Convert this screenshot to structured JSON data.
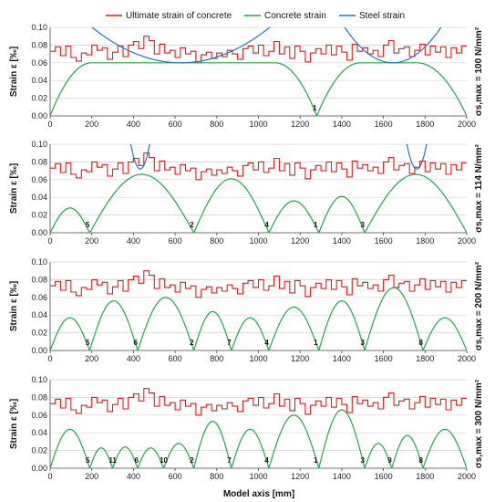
{
  "chart_data": {
    "type": "line",
    "legend": [
      {
        "name": "Ultimate strain of concrete",
        "color": "#e31a1c"
      },
      {
        "name": "Concrete strain",
        "color": "#22a845"
      },
      {
        "name": "Steel strain",
        "color": "#1f78c8"
      }
    ],
    "legend_position": "top",
    "xlabel": "Model axis [mm]",
    "ylabel": "Strain ε [‰]",
    "xlim": [
      0,
      2000
    ],
    "ylim": [
      0,
      0.1
    ],
    "x_ticks": [
      "0",
      "200",
      "400",
      "600",
      "800",
      "1000",
      "1200",
      "1400",
      "1600",
      "1800",
      "2000"
    ],
    "y_ticks": [
      "0.00",
      "0.02",
      "0.04",
      "0.06",
      "0.08",
      "0.10"
    ],
    "grid": "horizontal",
    "ultimate_strain": {
      "step": 25,
      "values": [
        0.073,
        0.078,
        0.068,
        0.079,
        0.066,
        0.062,
        0.071,
        0.069,
        0.08,
        0.074,
        0.077,
        0.064,
        0.072,
        0.079,
        0.067,
        0.08,
        0.084,
        0.076,
        0.09,
        0.085,
        0.07,
        0.081,
        0.071,
        0.074,
        0.066,
        0.077,
        0.07,
        0.073,
        0.06,
        0.069,
        0.072,
        0.065,
        0.071,
        0.067,
        0.074,
        0.07,
        0.064,
        0.076,
        0.079,
        0.071,
        0.08,
        0.068,
        0.073,
        0.084,
        0.07,
        0.078,
        0.065,
        0.079,
        0.073,
        0.061,
        0.071,
        0.076,
        0.07,
        0.08,
        0.069,
        0.079,
        0.072,
        0.063,
        0.081,
        0.073,
        0.077,
        0.07,
        0.074,
        0.067,
        0.08,
        0.085,
        0.071,
        0.076,
        0.078,
        0.067,
        0.074,
        0.081,
        0.069,
        0.079,
        0.072,
        0.078,
        0.066,
        0.077,
        0.071,
        0.079
      ]
    },
    "panels": [
      {
        "side_label": "σs,max = 100 N/mm²",
        "concrete_strain": [
          {
            "x": [
              0,
              200
            ],
            "peak": 0.06,
            "rise": "ramp"
          },
          {
            "x": [
              200,
              1080
            ],
            "peak": 0.06,
            "rise": "plateau"
          },
          {
            "x": [
              1080,
              1280
            ],
            "peak": 0.06,
            "rise": "ramp_down"
          },
          {
            "x": [
              1280,
              1490
            ],
            "peak": 0.06,
            "rise": "ramp"
          },
          {
            "x": [
              1490,
              1760
            ],
            "peak": 0.06,
            "rise": "plateau"
          },
          {
            "x": [
              1760,
              2000
            ],
            "peak": 0.06,
            "rise": "ramp_down"
          }
        ],
        "steel_strain": [
          {
            "x": [
              175,
              1080
            ],
            "min": 0.06
          },
          {
            "x": [
              1400,
              1890
            ],
            "min": 0.06
          }
        ],
        "crack_labels": [
          {
            "x": 1270,
            "text": "1"
          }
        ]
      },
      {
        "side_label": "σs,max = 114 N/mm²",
        "concrete_strain": [
          {
            "x": [
              0,
              190
            ],
            "peak": 0.028
          },
          {
            "x": [
              190,
              690
            ],
            "peak": 0.066
          },
          {
            "x": [
              690,
              1050
            ],
            "peak": 0.061
          },
          {
            "x": [
              1050,
              1290
            ],
            "peak": 0.036
          },
          {
            "x": [
              1290,
              1510
            ],
            "peak": 0.041
          },
          {
            "x": [
              1510,
              2000
            ],
            "peak": 0.066
          }
        ],
        "steel_strain": [
          {
            "x": [
              375,
              490
            ],
            "min": 0.072
          },
          {
            "x": [
              1700,
              1820
            ],
            "min": 0.072
          }
        ],
        "crack_labels": [
          {
            "x": 180,
            "text": "5"
          },
          {
            "x": 680,
            "text": "2"
          },
          {
            "x": 1040,
            "text": "4"
          },
          {
            "x": 1275,
            "text": "1"
          },
          {
            "x": 1500,
            "text": "3"
          }
        ]
      },
      {
        "side_label": "σs,max = 200 N/mm²",
        "concrete_strain": [
          {
            "x": [
              0,
              190
            ],
            "peak": 0.037
          },
          {
            "x": [
              190,
              420
            ],
            "peak": 0.056
          },
          {
            "x": [
              420,
              690
            ],
            "peak": 0.06
          },
          {
            "x": [
              690,
              870
            ],
            "peak": 0.044
          },
          {
            "x": [
              870,
              1050
            ],
            "peak": 0.037
          },
          {
            "x": [
              1050,
              1290
            ],
            "peak": 0.049
          },
          {
            "x": [
              1290,
              1510
            ],
            "peak": 0.056
          },
          {
            "x": [
              1510,
              1790
            ],
            "peak": 0.071
          },
          {
            "x": [
              1790,
              2000
            ],
            "peak": 0.037
          }
        ],
        "crack_labels": [
          {
            "x": 180,
            "text": "5"
          },
          {
            "x": 410,
            "text": "6"
          },
          {
            "x": 680,
            "text": "2"
          },
          {
            "x": 860,
            "text": "7"
          },
          {
            "x": 1040,
            "text": "4"
          },
          {
            "x": 1275,
            "text": "1"
          },
          {
            "x": 1500,
            "text": "3"
          },
          {
            "x": 1780,
            "text": "8"
          }
        ]
      },
      {
        "side_label": "σs,max = 300 N/mm²",
        "concrete_strain": [
          {
            "x": [
              0,
              190
            ],
            "peak": 0.044
          },
          {
            "x": [
              190,
              300
            ],
            "peak": 0.023
          },
          {
            "x": [
              300,
              420
            ],
            "peak": 0.024
          },
          {
            "x": [
              420,
              545
            ],
            "peak": 0.023
          },
          {
            "x": [
              545,
              690
            ],
            "peak": 0.028
          },
          {
            "x": [
              690,
              870
            ],
            "peak": 0.053
          },
          {
            "x": [
              870,
              1050
            ],
            "peak": 0.044
          },
          {
            "x": [
              1050,
              1290
            ],
            "peak": 0.06
          },
          {
            "x": [
              1290,
              1510
            ],
            "peak": 0.066
          },
          {
            "x": [
              1510,
              1640
            ],
            "peak": 0.028
          },
          {
            "x": [
              1640,
              1790
            ],
            "peak": 0.037
          },
          {
            "x": [
              1790,
              2000
            ],
            "peak": 0.044
          }
        ],
        "crack_labels": [
          {
            "x": 180,
            "text": "5"
          },
          {
            "x": 300,
            "text": "11"
          },
          {
            "x": 415,
            "text": "6"
          },
          {
            "x": 545,
            "text": "10"
          },
          {
            "x": 680,
            "text": "2"
          },
          {
            "x": 860,
            "text": "7"
          },
          {
            "x": 1040,
            "text": "4"
          },
          {
            "x": 1275,
            "text": "1"
          },
          {
            "x": 1500,
            "text": "3"
          },
          {
            "x": 1630,
            "text": "9"
          },
          {
            "x": 1780,
            "text": "8"
          }
        ]
      }
    ]
  }
}
